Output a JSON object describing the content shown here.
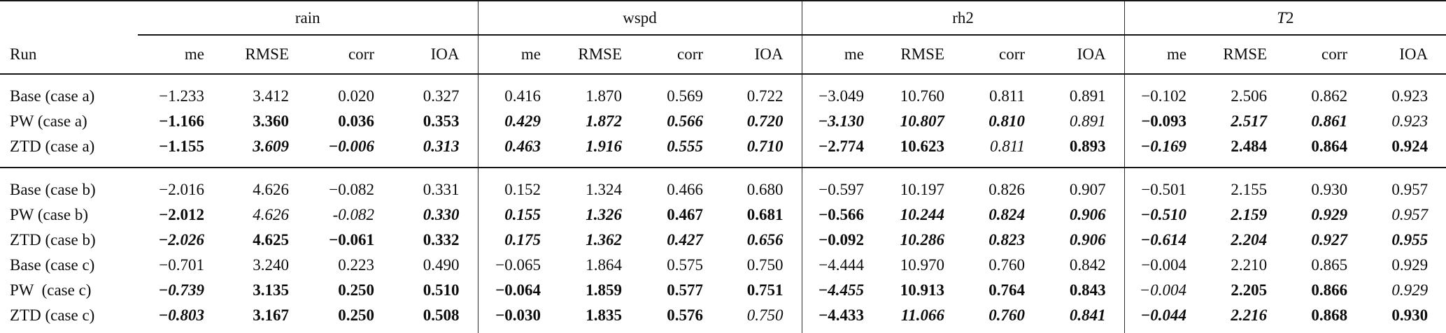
{
  "table": {
    "run_header": "Run",
    "metrics": [
      "me",
      "RMSE",
      "corr",
      "IOA"
    ],
    "groups": [
      {
        "key": "rain",
        "label": "rain"
      },
      {
        "key": "wspd",
        "label": "wspd"
      },
      {
        "key": "rh2",
        "label": "rh2"
      },
      {
        "key": "T2",
        "label": "T2",
        "label_italic": "T",
        "label_rest": "2"
      }
    ],
    "sections": [
      {
        "name": "case-a",
        "rows": [
          {
            "label": "Base (case a)",
            "cells": [
              [
                "−1.233",
                ""
              ],
              [
                "3.412",
                ""
              ],
              [
                "0.020",
                ""
              ],
              [
                "0.327",
                ""
              ],
              [
                "0.416",
                ""
              ],
              [
                "1.870",
                ""
              ],
              [
                "0.569",
                ""
              ],
              [
                "0.722",
                ""
              ],
              [
                "−3.049",
                ""
              ],
              [
                "10.760",
                ""
              ],
              [
                "0.811",
                ""
              ],
              [
                "0.891",
                ""
              ],
              [
                "−0.102",
                ""
              ],
              [
                "2.506",
                ""
              ],
              [
                "0.862",
                ""
              ],
              [
                "0.923",
                ""
              ]
            ]
          },
          {
            "label": "PW (case a)",
            "cells": [
              [
                "−1.166",
                "b"
              ],
              [
                "3.360",
                "b"
              ],
              [
                "0.036",
                "b"
              ],
              [
                "0.353",
                "b"
              ],
              [
                "0.429",
                "bi"
              ],
              [
                "1.872",
                "bi"
              ],
              [
                "0.566",
                "bi"
              ],
              [
                "0.720",
                "bi"
              ],
              [
                "−3.130",
                "bi"
              ],
              [
                "10.807",
                "bi"
              ],
              [
                "0.810",
                "bi"
              ],
              [
                "0.891",
                "i"
              ],
              [
                "−0.093",
                "b"
              ],
              [
                "2.517",
                "bi"
              ],
              [
                "0.861",
                "bi"
              ],
              [
                "0.923",
                "i"
              ]
            ]
          },
          {
            "label": "ZTD (case a)",
            "cells": [
              [
                "−1.155",
                "b"
              ],
              [
                "3.609",
                "bi"
              ],
              [
                "−0.006",
                "bi"
              ],
              [
                "0.313",
                "bi"
              ],
              [
                "0.463",
                "bi"
              ],
              [
                "1.916",
                "bi"
              ],
              [
                "0.555",
                "bi"
              ],
              [
                "0.710",
                "bi"
              ],
              [
                "−2.774",
                "b"
              ],
              [
                "10.623",
                "b"
              ],
              [
                "0.811",
                "i"
              ],
              [
                "0.893",
                "b"
              ],
              [
                "−0.169",
                "bi"
              ],
              [
                "2.484",
                "b"
              ],
              [
                "0.864",
                "b"
              ],
              [
                "0.924",
                "b"
              ]
            ]
          }
        ]
      },
      {
        "name": "case-b-c",
        "rows": [
          {
            "label": "Base (case b)",
            "cells": [
              [
                "−2.016",
                ""
              ],
              [
                "4.626",
                ""
              ],
              [
                "−0.082",
                ""
              ],
              [
                "0.331",
                ""
              ],
              [
                "0.152",
                ""
              ],
              [
                "1.324",
                ""
              ],
              [
                "0.466",
                ""
              ],
              [
                "0.680",
                ""
              ],
              [
                "−0.597",
                ""
              ],
              [
                "10.197",
                ""
              ],
              [
                "0.826",
                ""
              ],
              [
                "0.907",
                ""
              ],
              [
                "−0.501",
                ""
              ],
              [
                "2.155",
                ""
              ],
              [
                "0.930",
                ""
              ],
              [
                "0.957",
                ""
              ]
            ]
          },
          {
            "label": "PW (case b)",
            "cells": [
              [
                "−2.012",
                "b"
              ],
              [
                "4.626",
                "i"
              ],
              [
                "-0.082",
                "i"
              ],
              [
                "0.330",
                "bi"
              ],
              [
                "0.155",
                "bi"
              ],
              [
                "1.326",
                "bi"
              ],
              [
                "0.467",
                "b"
              ],
              [
                "0.681",
                "b"
              ],
              [
                "−0.566",
                "b"
              ],
              [
                "10.244",
                "bi"
              ],
              [
                "0.824",
                "bi"
              ],
              [
                "0.906",
                "bi"
              ],
              [
                "−0.510",
                "bi"
              ],
              [
                "2.159",
                "bi"
              ],
              [
                "0.929",
                "bi"
              ],
              [
                "0.957",
                "i"
              ]
            ]
          },
          {
            "label": "ZTD (case b)",
            "cells": [
              [
                "−2.026",
                "bi"
              ],
              [
                "4.625",
                "b"
              ],
              [
                "−0.061",
                "b"
              ],
              [
                "0.332",
                "b"
              ],
              [
                "0.175",
                "bi"
              ],
              [
                "1.362",
                "bi"
              ],
              [
                "0.427",
                "bi"
              ],
              [
                "0.656",
                "bi"
              ],
              [
                "−0.092",
                "b"
              ],
              [
                "10.286",
                "bi"
              ],
              [
                "0.823",
                "bi"
              ],
              [
                "0.906",
                "bi"
              ],
              [
                "−0.614",
                "bi"
              ],
              [
                "2.204",
                "bi"
              ],
              [
                "0.927",
                "bi"
              ],
              [
                "0.955",
                "bi"
              ]
            ]
          },
          {
            "label": "Base (case c)",
            "cells": [
              [
                "−0.701",
                ""
              ],
              [
                "3.240",
                ""
              ],
              [
                "0.223",
                ""
              ],
              [
                "0.490",
                ""
              ],
              [
                "−0.065",
                ""
              ],
              [
                "1.864",
                ""
              ],
              [
                "0.575",
                ""
              ],
              [
                "0.750",
                ""
              ],
              [
                "−4.444",
                ""
              ],
              [
                "10.970",
                ""
              ],
              [
                "0.760",
                ""
              ],
              [
                "0.842",
                ""
              ],
              [
                "−0.004",
                ""
              ],
              [
                "2.210",
                ""
              ],
              [
                "0.865",
                ""
              ],
              [
                "0.929",
                ""
              ]
            ]
          },
          {
            "label": "PW  (case c)",
            "cells": [
              [
                "−0.739",
                "bi"
              ],
              [
                "3.135",
                "b"
              ],
              [
                "0.250",
                "b"
              ],
              [
                "0.510",
                "b"
              ],
              [
                "−0.064",
                "b"
              ],
              [
                "1.859",
                "b"
              ],
              [
                "0.577",
                "b"
              ],
              [
                "0.751",
                "b"
              ],
              [
                "−4.455",
                "bi"
              ],
              [
                "10.913",
                "b"
              ],
              [
                "0.764",
                "b"
              ],
              [
                "0.843",
                "b"
              ],
              [
                "−0.004",
                "i"
              ],
              [
                "2.205",
                "b"
              ],
              [
                "0.866",
                "b"
              ],
              [
                "0.929",
                "i"
              ]
            ]
          },
          {
            "label": "ZTD (case c)",
            "cells": [
              [
                "−0.803",
                "bi"
              ],
              [
                "3.167",
                "b"
              ],
              [
                "0.250",
                "b"
              ],
              [
                "0.508",
                "b"
              ],
              [
                "−0.030",
                "b"
              ],
              [
                "1.835",
                "b"
              ],
              [
                "0.576",
                "b"
              ],
              [
                "0.750",
                "i"
              ],
              [
                "−4.433",
                "b"
              ],
              [
                "11.066",
                "bi"
              ],
              [
                "0.760",
                "bi"
              ],
              [
                "0.841",
                "bi"
              ],
              [
                "−0.044",
                "bi"
              ],
              [
                "2.216",
                "bi"
              ],
              [
                "0.868",
                "b"
              ],
              [
                "0.930",
                "b"
              ]
            ]
          }
        ]
      }
    ]
  }
}
